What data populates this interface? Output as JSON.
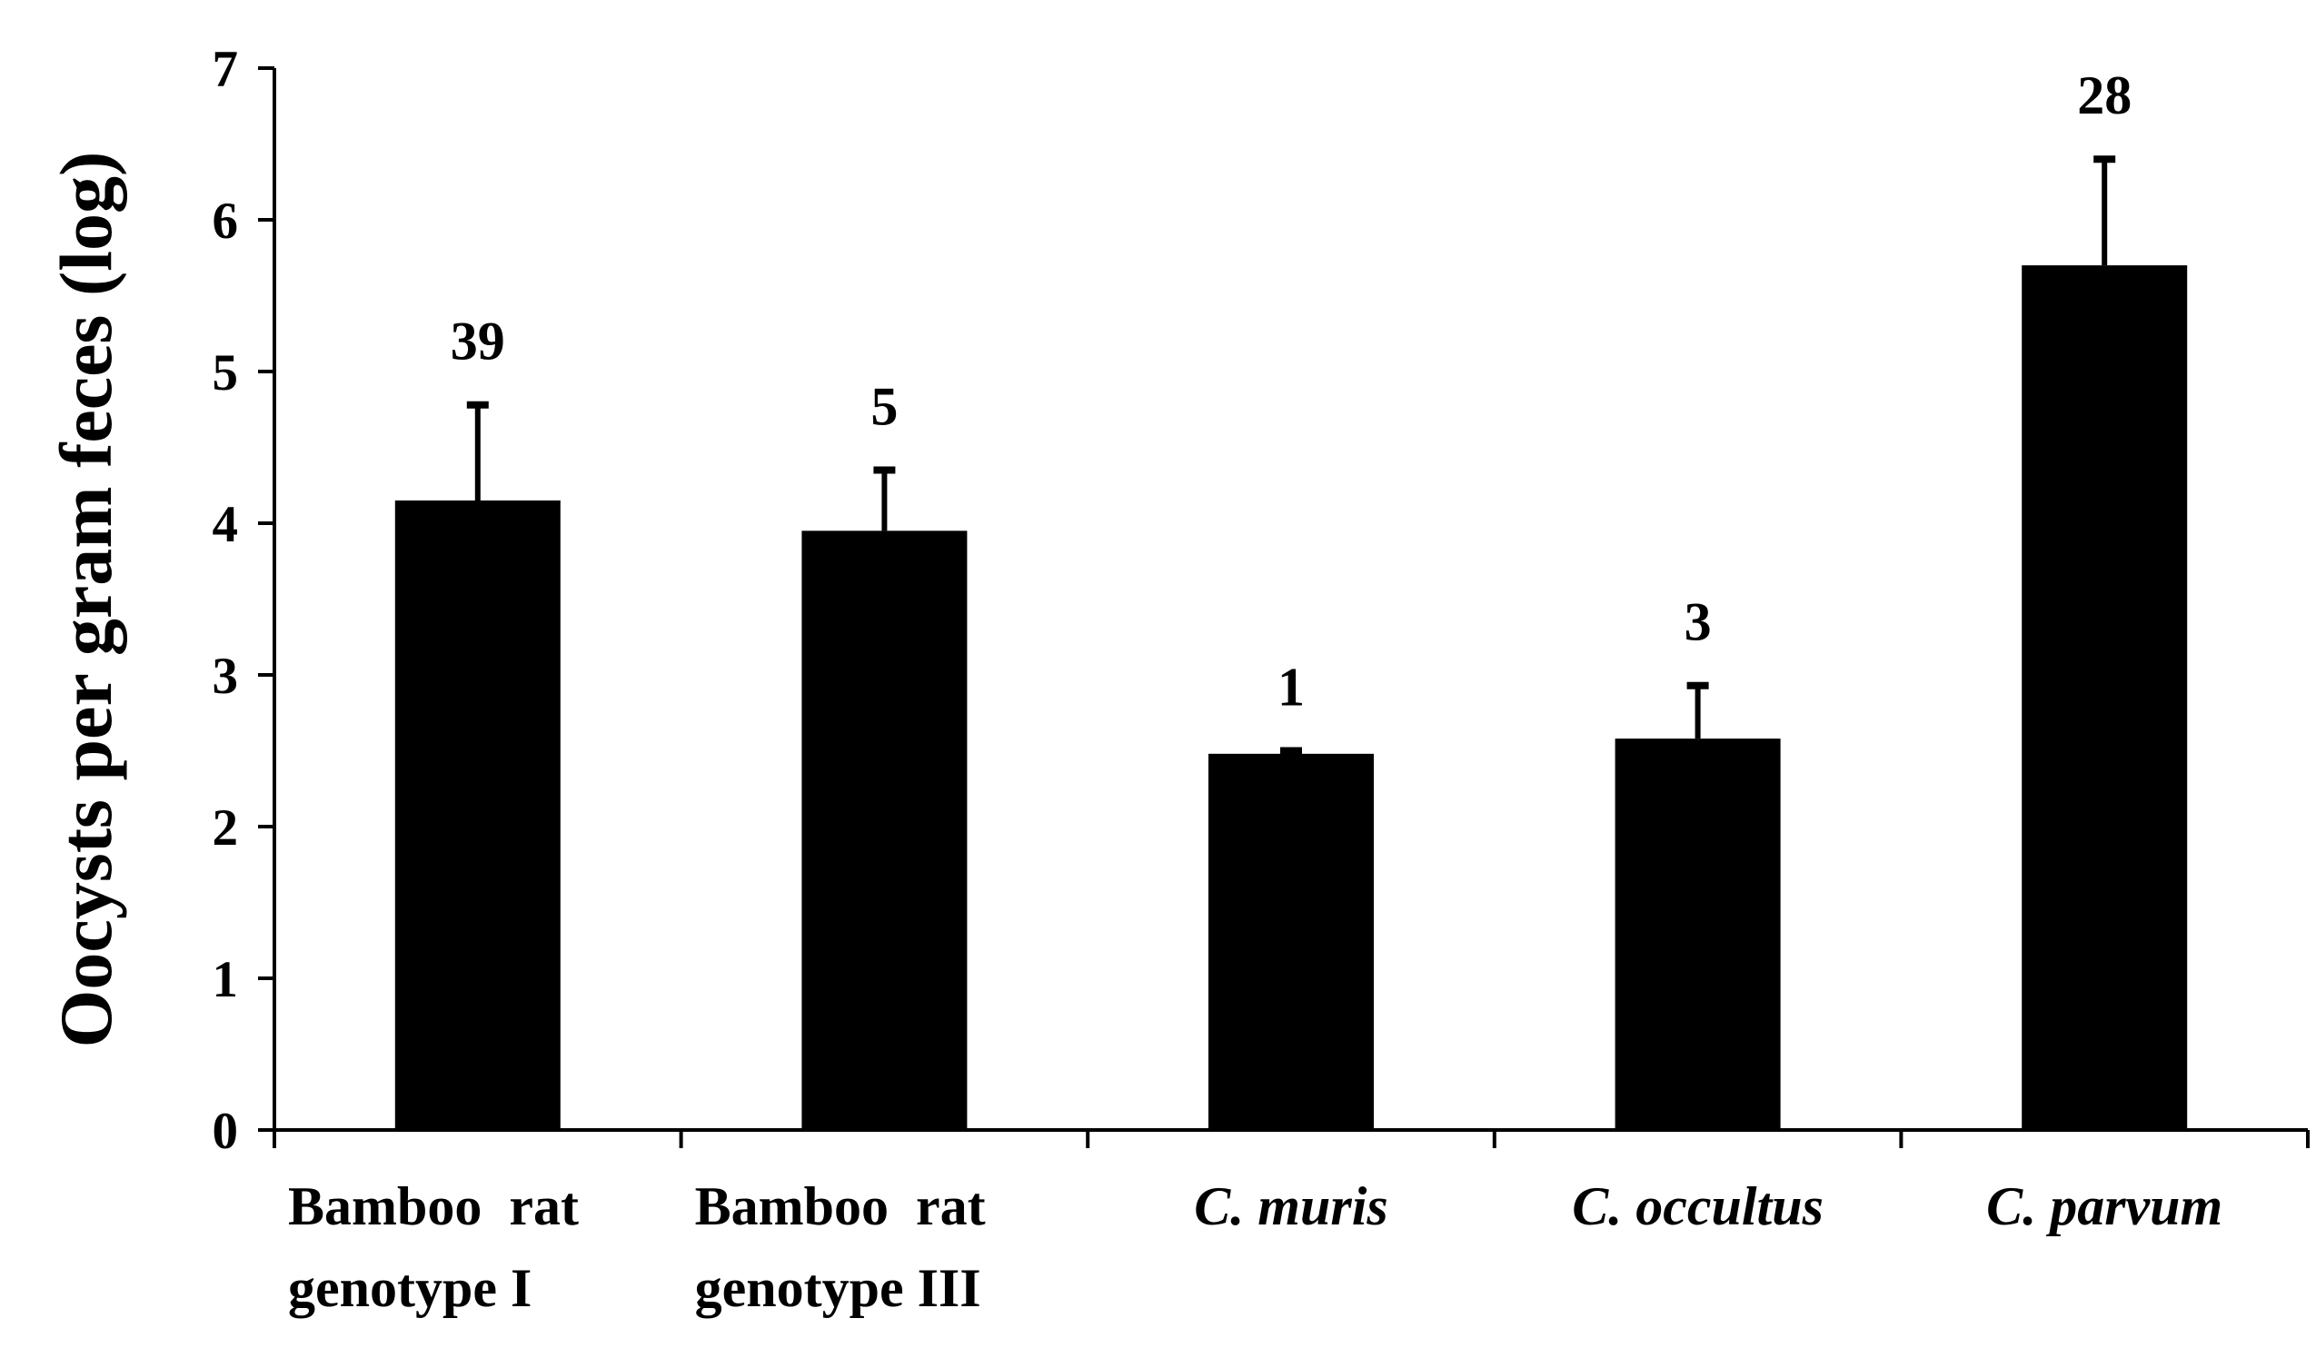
{
  "chart_data": {
    "type": "bar",
    "title": "",
    "xlabel": "",
    "ylabel": "Oocysts per gram feces (log)",
    "ylim": [
      0,
      7
    ],
    "yticks": [
      "0",
      "1",
      "2",
      "3",
      "4",
      "5",
      "6",
      "7"
    ],
    "categories": [
      {
        "lines": [
          "Bamboo  rat",
          "genotype I"
        ],
        "italic": false
      },
      {
        "lines": [
          "Bamboo  rat",
          "genotype III"
        ],
        "italic": false
      },
      {
        "lines": [
          "C. muris"
        ],
        "italic": true
      },
      {
        "lines": [
          "C. occultus"
        ],
        "italic": true
      },
      {
        "lines": [
          "C. parvum"
        ],
        "italic": true
      }
    ],
    "values": [
      4.15,
      3.95,
      2.48,
      2.58,
      5.7
    ],
    "error_upper": [
      4.78,
      4.35,
      2.5,
      2.93,
      6.4
    ],
    "data_labels": [
      "39",
      "5",
      "1",
      "3",
      "28"
    ],
    "bar_color": "#000000"
  }
}
